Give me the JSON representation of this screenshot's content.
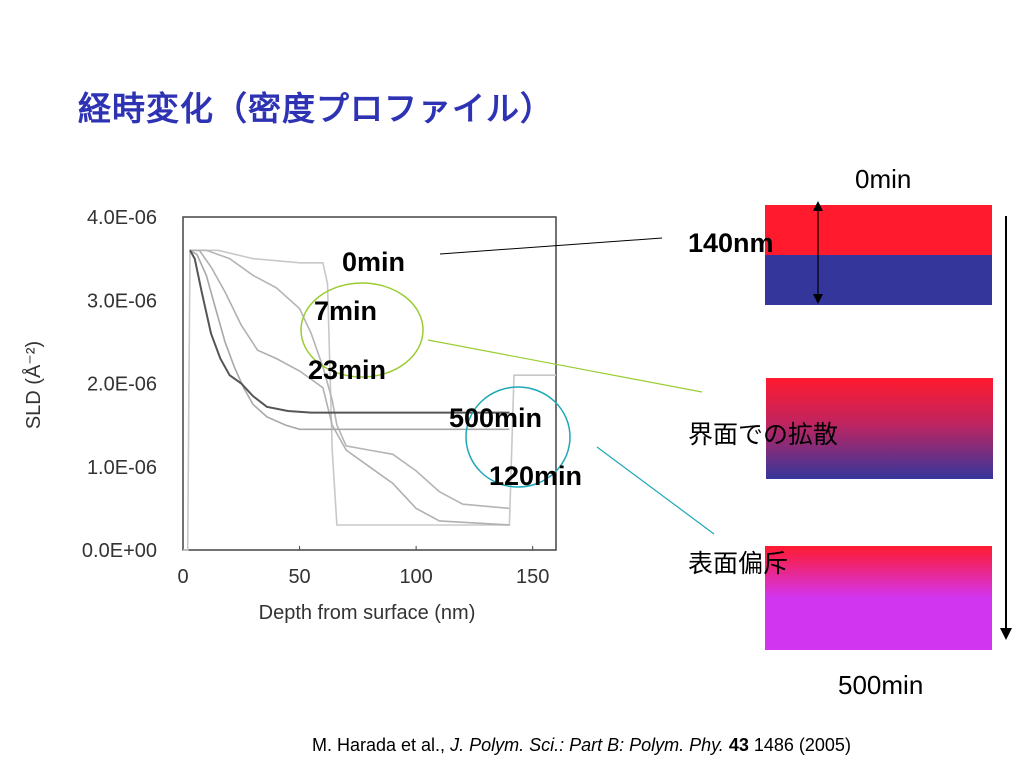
{
  "slide": {
    "title": "経時変化（密度プロファイル）"
  },
  "annotations": {
    "label_0min": "0min",
    "label_7min": "7min",
    "label_23min": "23min",
    "label_500min": "500min",
    "label_120min": "120min",
    "thickness": "140nm",
    "right_top": "0min",
    "right_bottom": "500min",
    "interface_diffusion": "界面での拡散",
    "surface_segregation": "表面偏斥"
  },
  "citation": {
    "authors": "M. Harada et al., ",
    "journal": "J. Polym. Sci.: Part B: Polym. Phy.",
    "volume": "43",
    "rest": " 1486 (2005)"
  },
  "colors": {
    "title": "#2e33b3",
    "top_layer": "#ff1a2e",
    "bottom_layer": "#35369b",
    "surface_layer": "#d235f0",
    "green_circle": "#9acd32",
    "cyan_circle": "#1fa8b8"
  },
  "chart_data": {
    "type": "line",
    "xlabel": "Depth from surface (nm)",
    "ylabel": "SLD (Å⁻²)",
    "xlim": [
      0,
      160
    ],
    "ylim": [
      0,
      4e-06
    ],
    "x_ticks": [
      "0",
      "50",
      "100",
      "150"
    ],
    "y_ticks": [
      "0.0E+00",
      "1.0E-06",
      "2.0E-06",
      "3.0E-06",
      "4.0E-06"
    ],
    "series": [
      {
        "name": "0min",
        "color": "#c8c8c8",
        "x": [
          0,
          2,
          3,
          15,
          30,
          50,
          60,
          62,
          64,
          66,
          70,
          100,
          120,
          140,
          142,
          145,
          160
        ],
        "y": [
          0,
          0,
          3.6e-06,
          3.6e-06,
          3.5e-06,
          3.45e-06,
          3.45e-06,
          3.2e-06,
          1.2e-06,
          3e-07,
          3e-07,
          3e-07,
          3e-07,
          3e-07,
          2.1e-06,
          2.1e-06,
          2.1e-06
        ]
      },
      {
        "name": "7min",
        "color": "#b5b5b5",
        "x": [
          3,
          10,
          20,
          30,
          40,
          50,
          55,
          60,
          64,
          66,
          70,
          80,
          90,
          100,
          110,
          120,
          140
        ],
        "y": [
          3.6e-06,
          3.6e-06,
          3.5e-06,
          3.3e-06,
          3.15e-06,
          2.9e-06,
          2.6e-06,
          2.2e-06,
          1.8e-06,
          1.5e-06,
          1.25e-06,
          1.2e-06,
          1.15e-06,
          9.5e-07,
          7e-07,
          5.5e-07,
          5e-07
        ]
      },
      {
        "name": "23min",
        "color": "#b0b0b0",
        "x": [
          3,
          7,
          12,
          18,
          25,
          32,
          40,
          50,
          60,
          64,
          70,
          80,
          90,
          100,
          110,
          140
        ],
        "y": [
          3.6e-06,
          3.6e-06,
          3.4e-06,
          3.1e-06,
          2.7e-06,
          2.4e-06,
          2.3e-06,
          2.15e-06,
          1.95e-06,
          1.5e-06,
          1.2e-06,
          1e-06,
          8e-07,
          5e-07,
          3.5e-07,
          3e-07
        ]
      },
      {
        "name": "120min",
        "color": "#a8a8a8",
        "x": [
          3,
          6,
          10,
          14,
          18,
          22,
          26,
          30,
          36,
          44,
          50,
          70,
          100,
          140
        ],
        "y": [
          3.6e-06,
          3.55e-06,
          3.3e-06,
          2.9e-06,
          2.5e-06,
          2.2e-06,
          1.95e-06,
          1.75e-06,
          1.6e-06,
          1.5e-06,
          1.45e-06,
          1.45e-06,
          1.45e-06,
          1.45e-06
        ]
      },
      {
        "name": "500min",
        "color": "#555555",
        "x": [
          3,
          5,
          8,
          12,
          16,
          20,
          25,
          30,
          36,
          45,
          55,
          70,
          100,
          140
        ],
        "y": [
          3.6e-06,
          3.5e-06,
          3.1e-06,
          2.6e-06,
          2.3e-06,
          2.1e-06,
          2e-06,
          1.85e-06,
          1.72e-06,
          1.67e-06,
          1.65e-06,
          1.65e-06,
          1.65e-06,
          1.65e-06
        ]
      }
    ]
  }
}
